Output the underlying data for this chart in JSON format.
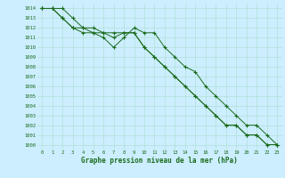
{
  "title": "Graphe pression niveau de la mer (hPa)",
  "xlabel_hours": [
    0,
    1,
    2,
    3,
    4,
    5,
    6,
    7,
    8,
    9,
    10,
    11,
    12,
    13,
    14,
    15,
    16,
    17,
    18,
    19,
    20,
    21,
    22,
    23
  ],
  "s1": [
    1014,
    1014,
    1014,
    1013,
    1012,
    1012,
    1011.5,
    1011.5,
    1011.5,
    1011.5,
    1010,
    1009,
    1008,
    1007,
    1006,
    1005,
    1004,
    1003,
    1002,
    1002,
    1001,
    1001,
    1000,
    1000
  ],
  "s2": [
    1014,
    1014,
    1013,
    1012,
    1012,
    1011.5,
    1011.5,
    1011,
    1011.5,
    1011.5,
    1010,
    1009,
    1008,
    1007,
    1006,
    1005,
    1004,
    1003,
    1002,
    1002,
    1001,
    1001,
    1000,
    1000
  ],
  "s3": [
    1014,
    1014,
    1013,
    1012,
    1011.5,
    1011.5,
    1011,
    1010,
    1011,
    1012,
    1011.5,
    1011.5,
    1010,
    1009,
    1008,
    1007.5,
    1006,
    1005,
    1004,
    1003,
    1002,
    1002,
    1001,
    1000
  ],
  "line_color": "#1a6b1a",
  "bg_color": "#cceeff",
  "grid_color": "#aaddcc",
  "text_color": "#1a6b1a",
  "ylim_min": 999.5,
  "ylim_max": 1014.5,
  "yticks": [
    1000,
    1001,
    1002,
    1003,
    1004,
    1005,
    1006,
    1007,
    1008,
    1009,
    1010,
    1011,
    1012,
    1013,
    1014
  ]
}
